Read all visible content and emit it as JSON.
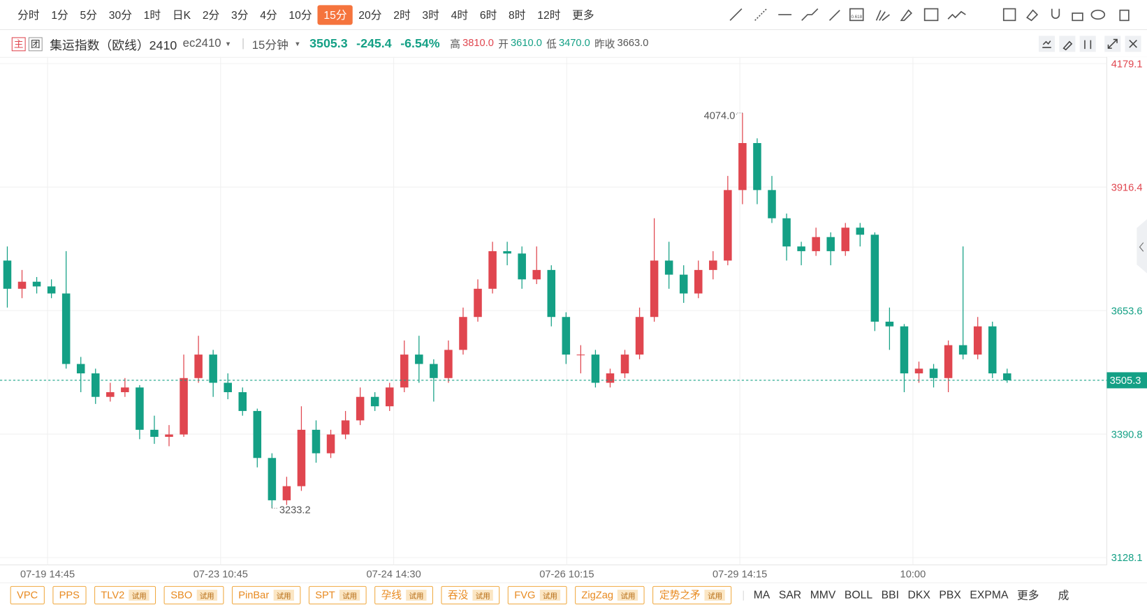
{
  "toolbar": {
    "intervals": [
      "分时",
      "1分",
      "5分",
      "30分",
      "1时",
      "日K",
      "2分",
      "3分",
      "4分",
      "10分",
      "15分",
      "20分",
      "2时",
      "3时",
      "4时",
      "6时",
      "8时",
      "12时",
      "更多"
    ],
    "active_index": 10,
    "fib_icon_label": "0.618"
  },
  "header": {
    "main_badge": "主",
    "group_badge": "团",
    "name": "集运指数（欧线）2410",
    "code": "ec2410",
    "period": "15分钟",
    "last": "3505.3",
    "change": "-245.4",
    "change_pct": "-6.54%",
    "stats": [
      {
        "label": "高",
        "value": "3810.0"
      },
      {
        "label": "开",
        "value": "3610.0"
      },
      {
        "label": "低",
        "value": "3470.0"
      },
      {
        "label": "昨收",
        "value": "3663.0"
      }
    ]
  },
  "chart_data": {
    "type": "candlestick",
    "up_color": "#e0464f",
    "down_color": "#14a085",
    "prev_close": 3663,
    "ylim": [
      3128.1,
      4179.1
    ],
    "yticks": [
      4179.1,
      3916.4,
      3653.6,
      3390.8,
      3128.1
    ],
    "xtick_labels": [
      "07-19 14:45",
      "07-23 10:45",
      "07-24 14:30",
      "07-26 10:15",
      "07-29 14:15",
      "10:00"
    ],
    "current_price": 3505.3,
    "annotations": [
      {
        "text": "4074.0"
      },
      {
        "text": "3233.2"
      }
    ],
    "candles": [
      [
        3760,
        3790,
        3660,
        3700
      ],
      [
        3700,
        3740,
        3680,
        3715
      ],
      [
        3715,
        3725,
        3690,
        3705
      ],
      [
        3705,
        3720,
        3680,
        3690
      ],
      [
        3690,
        3780,
        3530,
        3540
      ],
      [
        3540,
        3555,
        3480,
        3520
      ],
      [
        3520,
        3530,
        3455,
        3470
      ],
      [
        3470,
        3500,
        3460,
        3480
      ],
      [
        3480,
        3510,
        3470,
        3490
      ],
      [
        3490,
        3495,
        3380,
        3400
      ],
      [
        3400,
        3430,
        3370,
        3385
      ],
      [
        3385,
        3410,
        3365,
        3390
      ],
      [
        3390,
        3560,
        3385,
        3510
      ],
      [
        3510,
        3600,
        3500,
        3560
      ],
      [
        3560,
        3570,
        3470,
        3500
      ],
      [
        3500,
        3520,
        3465,
        3480
      ],
      [
        3480,
        3490,
        3430,
        3440
      ],
      [
        3440,
        3445,
        3320,
        3340
      ],
      [
        3340,
        3350,
        3233.2,
        3250
      ],
      [
        3250,
        3300,
        3240,
        3280
      ],
      [
        3280,
        3450,
        3270,
        3400
      ],
      [
        3400,
        3420,
        3330,
        3350
      ],
      [
        3350,
        3400,
        3340,
        3390
      ],
      [
        3390,
        3440,
        3380,
        3420
      ],
      [
        3420,
        3490,
        3410,
        3470
      ],
      [
        3470,
        3480,
        3440,
        3450
      ],
      [
        3450,
        3500,
        3440,
        3490
      ],
      [
        3490,
        3590,
        3480,
        3560
      ],
      [
        3560,
        3600,
        3500,
        3540
      ],
      [
        3540,
        3550,
        3460,
        3510
      ],
      [
        3510,
        3590,
        3500,
        3570
      ],
      [
        3570,
        3660,
        3560,
        3640
      ],
      [
        3640,
        3720,
        3630,
        3700
      ],
      [
        3700,
        3800,
        3690,
        3780
      ],
      [
        3780,
        3800,
        3750,
        3775
      ],
      [
        3775,
        3790,
        3700,
        3720
      ],
      [
        3720,
        3790,
        3710,
        3740
      ],
      [
        3740,
        3750,
        3620,
        3640
      ],
      [
        3640,
        3650,
        3540,
        3560
      ],
      [
        3560,
        3580,
        3520,
        3560
      ],
      [
        3560,
        3570,
        3490,
        3500
      ],
      [
        3500,
        3530,
        3490,
        3520
      ],
      [
        3520,
        3570,
        3510,
        3560
      ],
      [
        3560,
        3660,
        3550,
        3640
      ],
      [
        3640,
        3850,
        3630,
        3760
      ],
      [
        3760,
        3800,
        3700,
        3730
      ],
      [
        3730,
        3750,
        3670,
        3690
      ],
      [
        3690,
        3760,
        3680,
        3740
      ],
      [
        3740,
        3780,
        3720,
        3760
      ],
      [
        3760,
        3940,
        3750,
        3910
      ],
      [
        3910,
        4074,
        3880,
        4010
      ],
      [
        4010,
        4020,
        3880,
        3910
      ],
      [
        3910,
        3940,
        3840,
        3850
      ],
      [
        3850,
        3860,
        3760,
        3790
      ],
      [
        3790,
        3800,
        3750,
        3780
      ],
      [
        3780,
        3830,
        3770,
        3810
      ],
      [
        3810,
        3820,
        3750,
        3780
      ],
      [
        3780,
        3840,
        3770,
        3830
      ],
      [
        3830,
        3840,
        3790,
        3815
      ],
      [
        3815,
        3820,
        3610,
        3630
      ],
      [
        3630,
        3660,
        3570,
        3620
      ],
      [
        3620,
        3625,
        3480,
        3520
      ],
      [
        3520,
        3545,
        3500,
        3530
      ],
      [
        3530,
        3540,
        3490,
        3510
      ],
      [
        3510,
        3590,
        3480,
        3580
      ],
      [
        3580,
        3790,
        3550,
        3560
      ],
      [
        3560,
        3640,
        3550,
        3620
      ],
      [
        3620,
        3630,
        3510,
        3520
      ],
      [
        3520,
        3530,
        3500,
        3505.3
      ]
    ]
  },
  "indicators": {
    "left": [
      {
        "name": "VPC"
      },
      {
        "name": "PPS"
      },
      {
        "name": "TLV2",
        "tag": "试用"
      },
      {
        "name": "SBO",
        "tag": "试用"
      },
      {
        "name": "PinBar",
        "tag": "试用"
      },
      {
        "name": "SPT",
        "tag": "试用"
      },
      {
        "name": "孕线",
        "tag": "试用"
      },
      {
        "name": "吞没",
        "tag": "试用"
      },
      {
        "name": "FVG",
        "tag": "试用"
      },
      {
        "name": "ZigZag",
        "tag": "试用"
      },
      {
        "name": "定势之矛",
        "tag": "试用"
      }
    ],
    "right": [
      "MA",
      "SAR",
      "MMV",
      "BOLL",
      "BBI",
      "DKX",
      "PBX",
      "EXPMA"
    ],
    "more": "更多",
    "cut": "成"
  }
}
